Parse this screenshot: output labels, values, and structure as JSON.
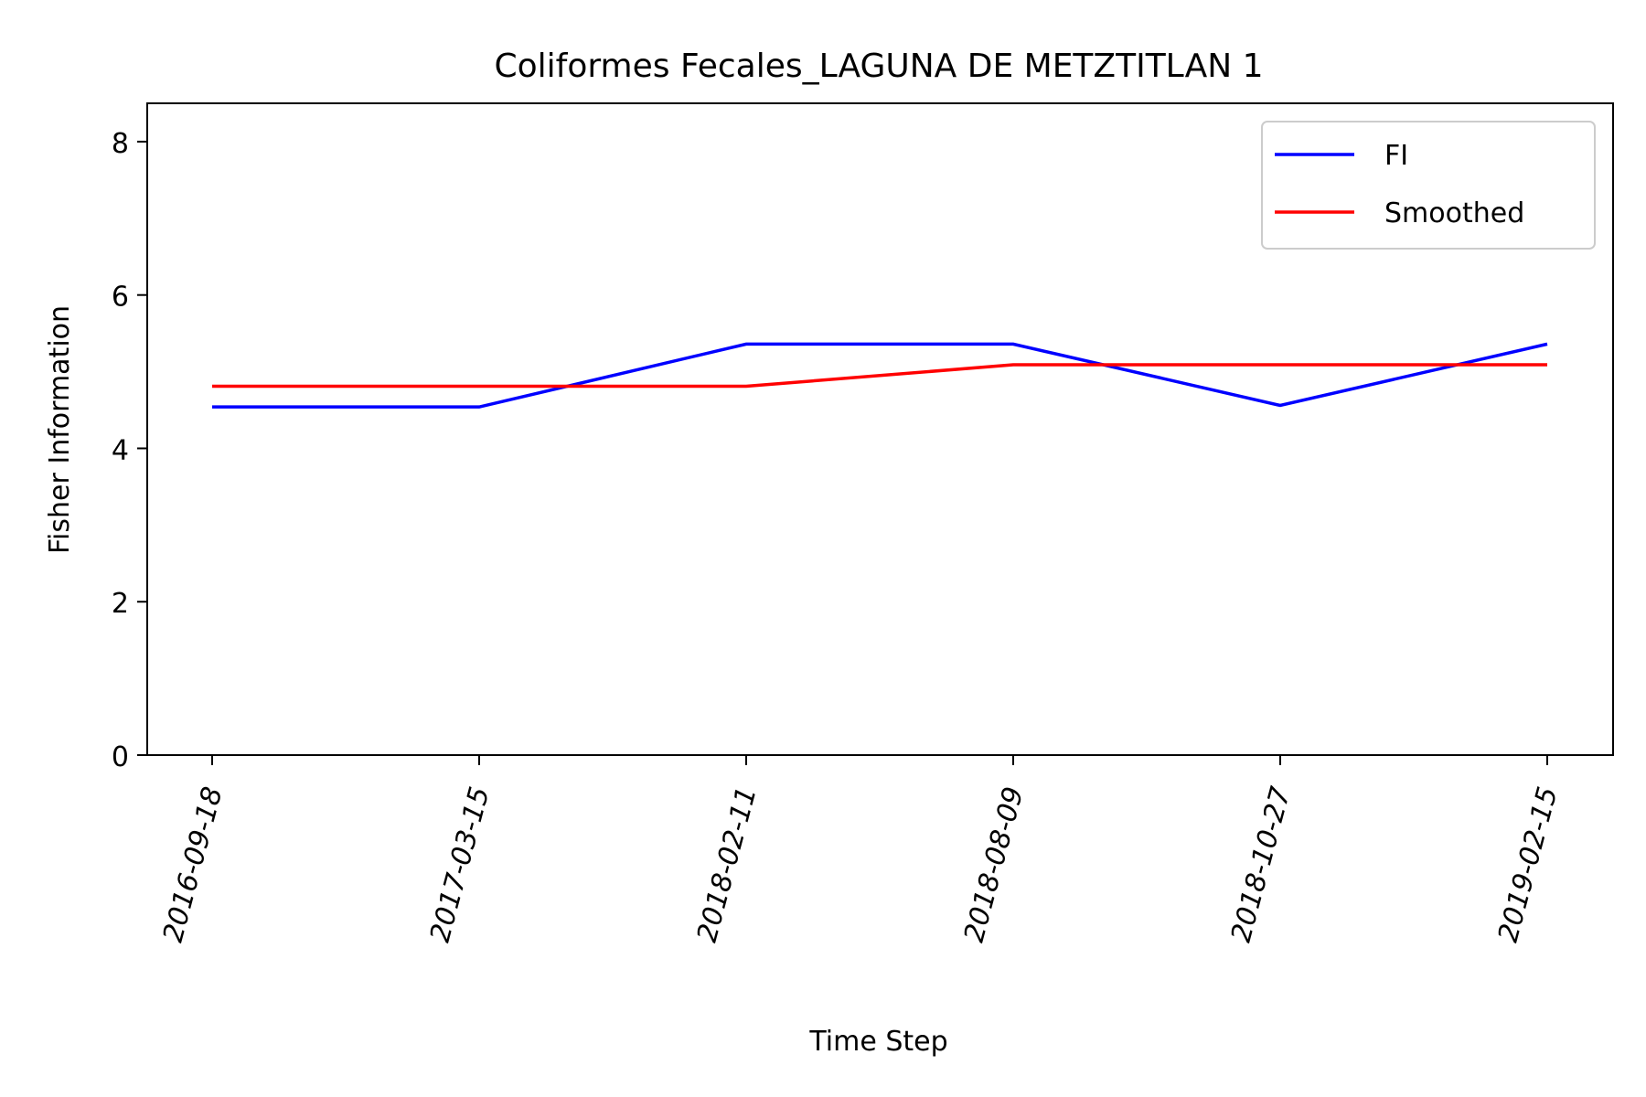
{
  "chart_data": {
    "type": "line",
    "title": "Coliformes Fecales_LAGUNA DE METZTITLAN 1",
    "xlabel": "Time Step",
    "ylabel": "Fisher Information",
    "categories": [
      "2016-09-18",
      "2017-03-15",
      "2018-02-11",
      "2018-08-09",
      "2018-10-27",
      "2019-02-15"
    ],
    "ylim": [
      0,
      8.5
    ],
    "yticks": [
      0,
      2,
      4,
      6,
      8
    ],
    "grid": false,
    "legend_position": "top-right",
    "series": [
      {
        "name": "FI",
        "color": "#0000ff",
        "values": [
          4.54,
          4.54,
          5.36,
          5.36,
          4.56,
          5.36
        ]
      },
      {
        "name": "Smoothed",
        "color": "#ff0000",
        "values": [
          4.81,
          4.81,
          4.81,
          5.09,
          5.09,
          5.09
        ]
      }
    ]
  }
}
